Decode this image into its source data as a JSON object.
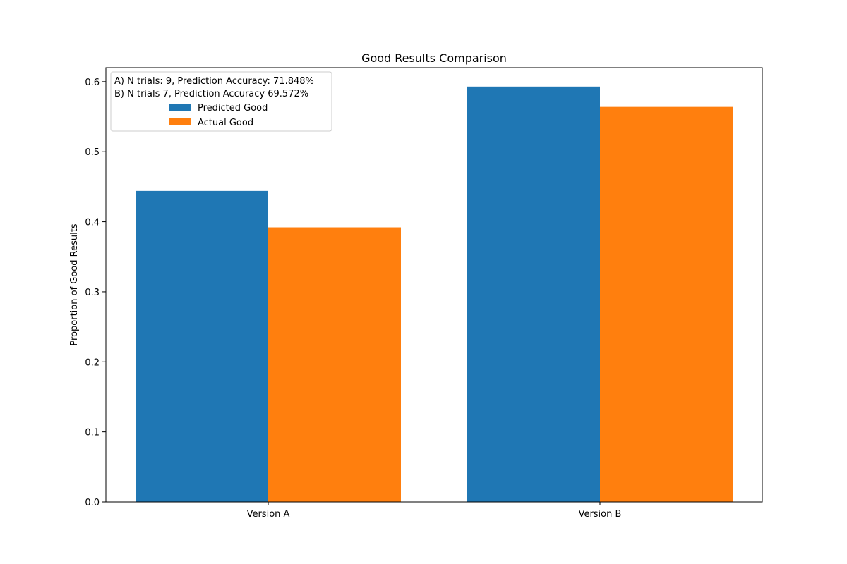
{
  "chart_data": {
    "type": "bar",
    "title": "Good Results Comparison",
    "xlabel": "",
    "ylabel": "Proportion of Good Results",
    "categories": [
      "Version A",
      "Version B"
    ],
    "series": [
      {
        "name": "Predicted Good",
        "values": [
          0.444,
          0.593
        ],
        "color": "#1f77b4"
      },
      {
        "name": "Actual Good",
        "values": [
          0.392,
          0.564
        ],
        "color": "#ff7f0e"
      }
    ],
    "ylim": [
      0,
      0.62
    ],
    "yticks": [
      "0.0",
      "0.1",
      "0.2",
      "0.3",
      "0.4",
      "0.5",
      "0.6"
    ],
    "grid": false,
    "legend_position": "top-left",
    "legend_header_lines": [
      "A) N trials: 9, Prediction Accuracy: 71.848%",
      "B) N trials 7,  Prediction Accuracy 69.572%"
    ]
  }
}
